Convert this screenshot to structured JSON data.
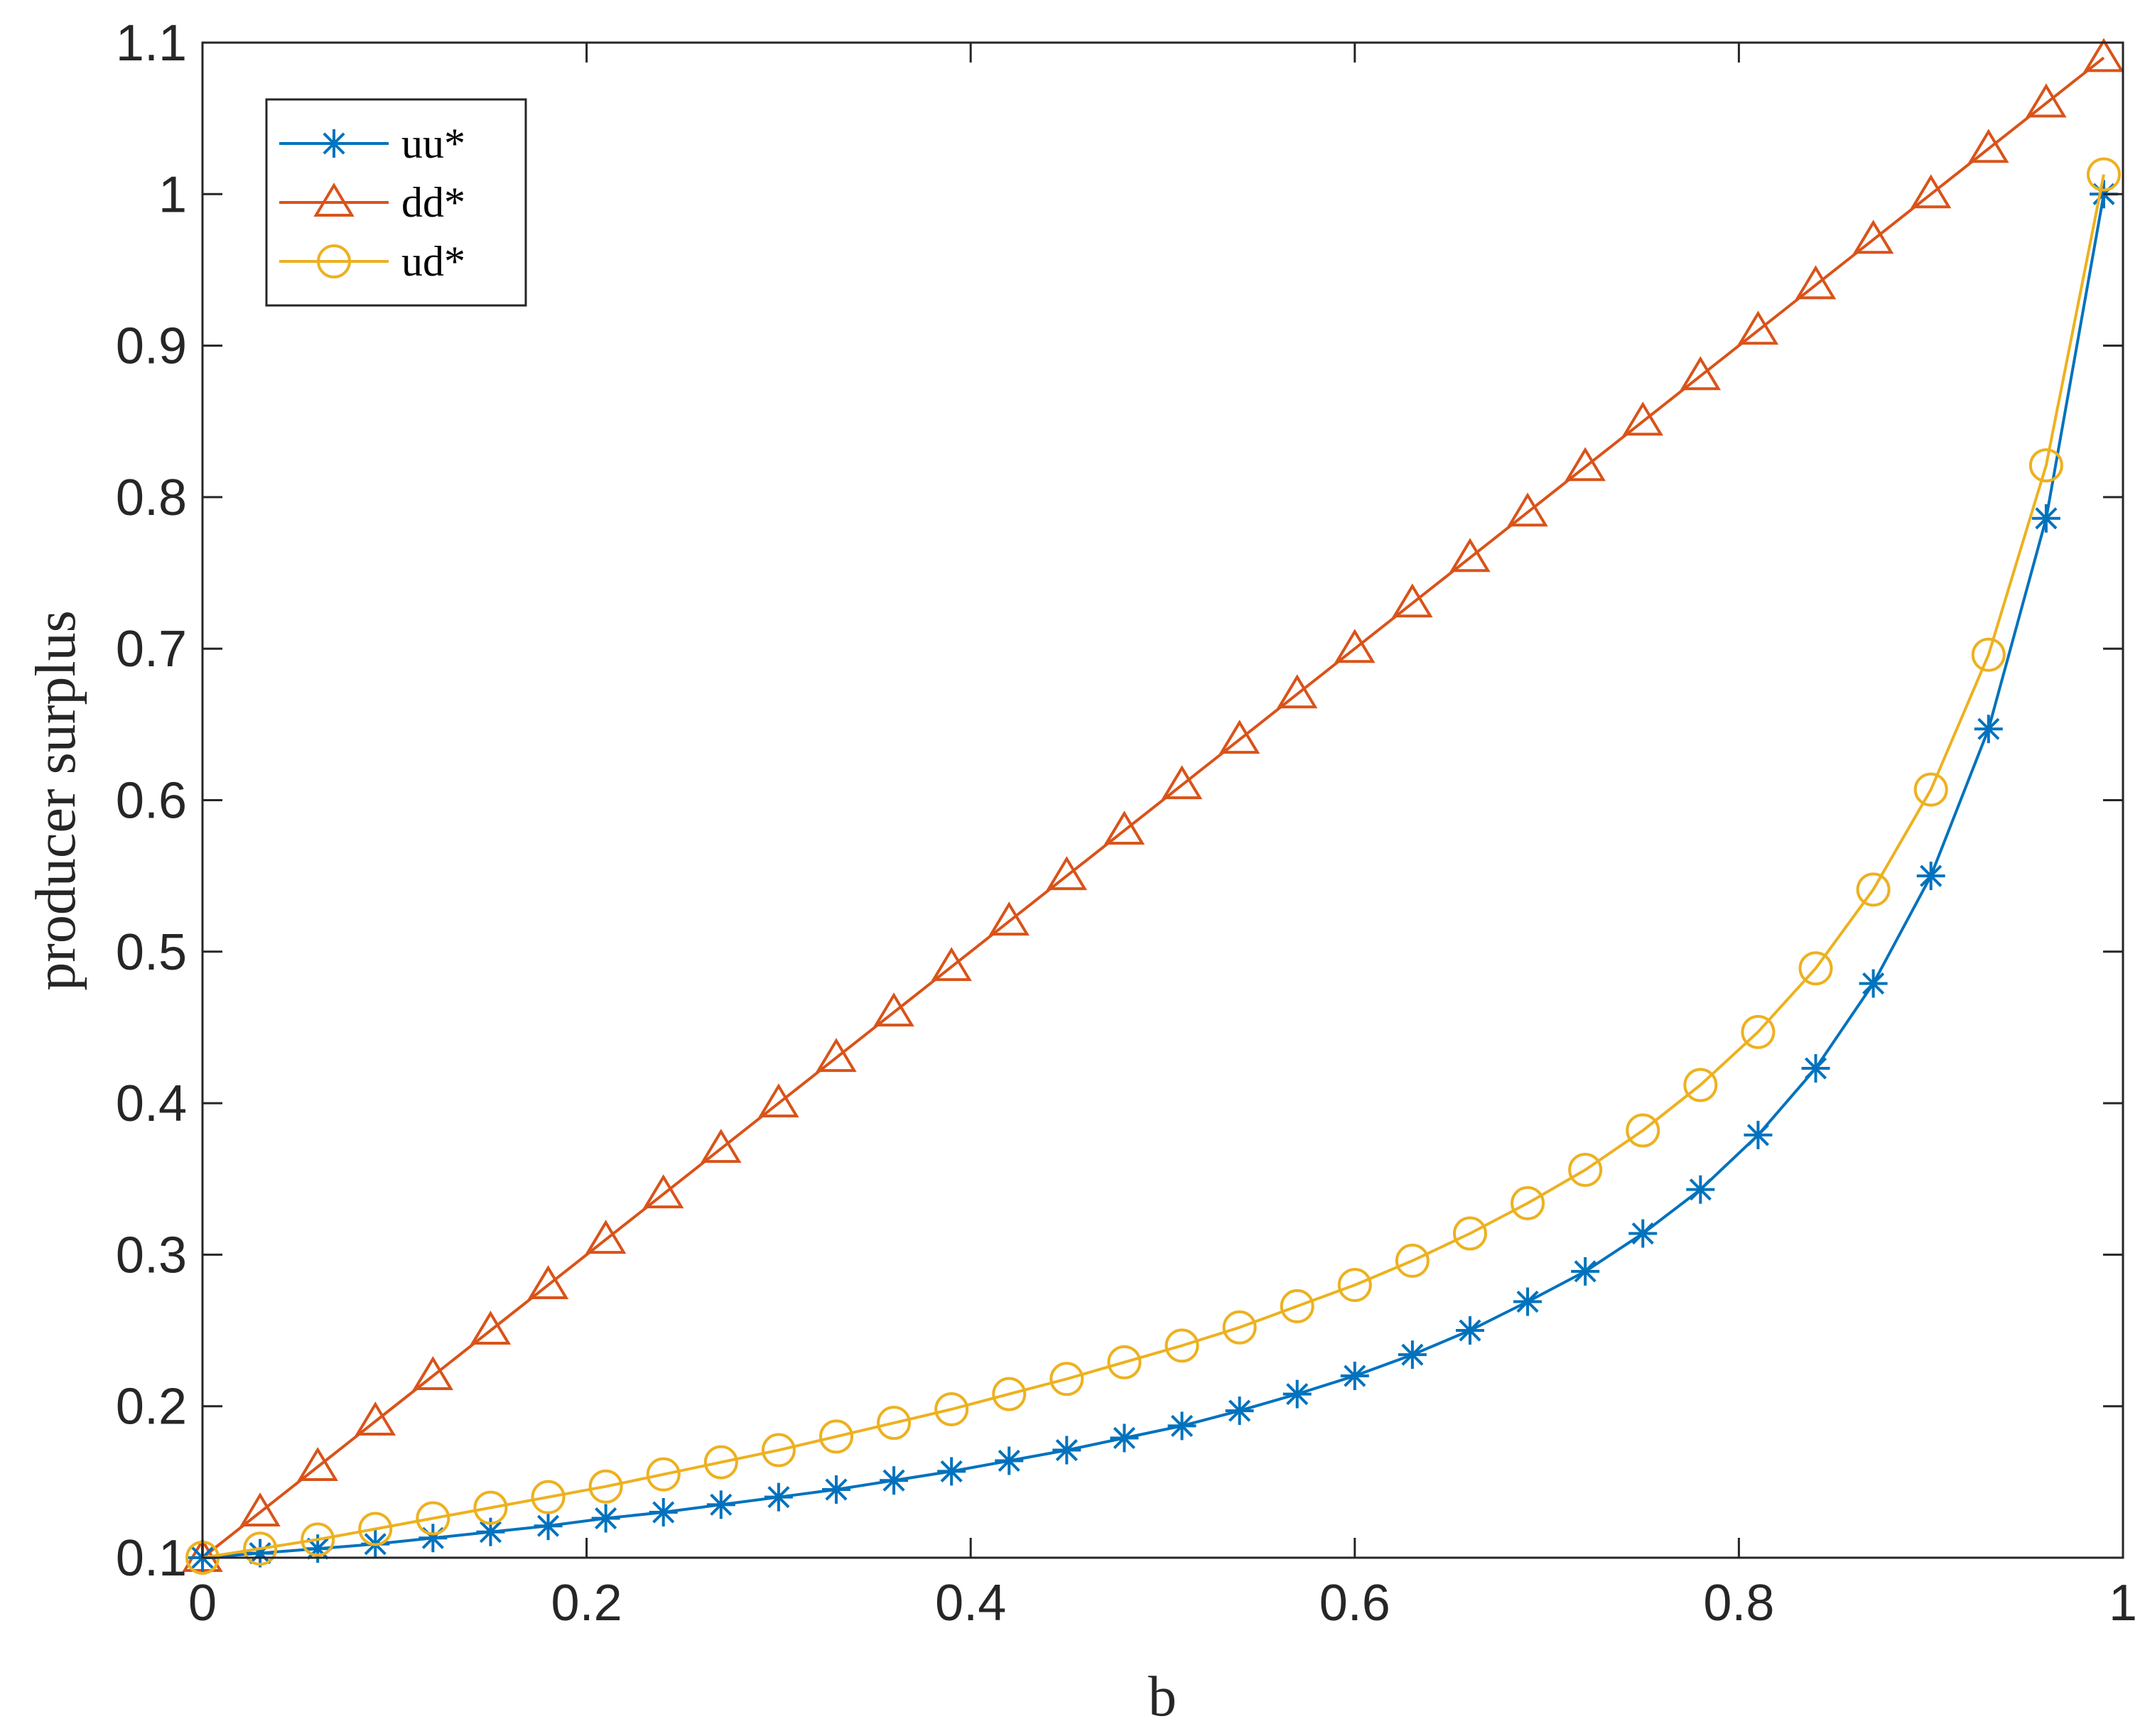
{
  "chart_data": {
    "type": "line",
    "title": "",
    "xlabel": "b",
    "ylabel": "producer surplus",
    "xlim": [
      0,
      1
    ],
    "ylim": [
      0.1,
      1.1
    ],
    "xticks": [
      0,
      0.2,
      0.4,
      0.6,
      0.8,
      1
    ],
    "xtick_labels": [
      "0",
      "0.2",
      "0.4",
      "0.6",
      "0.8",
      "1"
    ],
    "yticks": [
      0.1,
      0.2,
      0.3,
      0.4,
      0.5,
      0.6,
      0.7,
      0.8,
      0.9,
      1,
      1.1
    ],
    "ytick_labels": [
      "0.1",
      "0.2",
      "0.3",
      "0.4",
      "0.5",
      "0.6",
      "0.7",
      "0.8",
      "0.9",
      "1",
      "1.1"
    ],
    "grid": false,
    "legend_position": "top-left",
    "x": [
      0,
      0.03,
      0.06,
      0.09,
      0.12,
      0.15,
      0.18,
      0.21,
      0.24,
      0.27,
      0.3,
      0.33,
      0.36,
      0.39,
      0.42,
      0.45,
      0.48,
      0.51,
      0.54,
      0.57,
      0.6,
      0.63,
      0.66,
      0.69,
      0.72,
      0.75,
      0.78,
      0.81,
      0.84,
      0.87,
      0.9,
      0.93,
      0.96,
      0.99
    ],
    "series": [
      {
        "name": "uu*",
        "color": "#0072BD",
        "marker": "asterisk",
        "values": [
          0.1,
          0.103,
          0.106,
          0.109,
          0.113,
          0.117,
          0.121,
          0.126,
          0.13,
          0.135,
          0.14,
          0.145,
          0.151,
          0.157,
          0.164,
          0.171,
          0.179,
          0.187,
          0.197,
          0.208,
          0.22,
          0.234,
          0.25,
          0.269,
          0.289,
          0.314,
          0.343,
          0.379,
          0.423,
          0.479,
          0.55,
          0.647,
          0.786,
          1.0
        ]
      },
      {
        "name": "dd*",
        "color": "#D95319",
        "marker": "triangle",
        "values": [
          0.1,
          0.13,
          0.16,
          0.19,
          0.22,
          0.25,
          0.28,
          0.31,
          0.34,
          0.37,
          0.4,
          0.43,
          0.46,
          0.49,
          0.52,
          0.55,
          0.58,
          0.61,
          0.64,
          0.67,
          0.7,
          0.73,
          0.76,
          0.79,
          0.82,
          0.85,
          0.88,
          0.91,
          0.94,
          0.97,
          1.0,
          1.03,
          1.06,
          1.09
        ]
      },
      {
        "name": "ud*",
        "color": "#EDB120",
        "marker": "circle",
        "values": [
          0.1,
          0.106,
          0.112,
          0.119,
          0.126,
          0.133,
          0.14,
          0.147,
          0.155,
          0.163,
          0.171,
          0.18,
          0.189,
          0.198,
          0.208,
          0.218,
          0.229,
          0.24,
          0.252,
          0.266,
          0.28,
          0.296,
          0.314,
          0.334,
          0.356,
          0.382,
          0.412,
          0.447,
          0.489,
          0.541,
          0.607,
          0.696,
          0.821,
          1.013
        ]
      }
    ]
  }
}
